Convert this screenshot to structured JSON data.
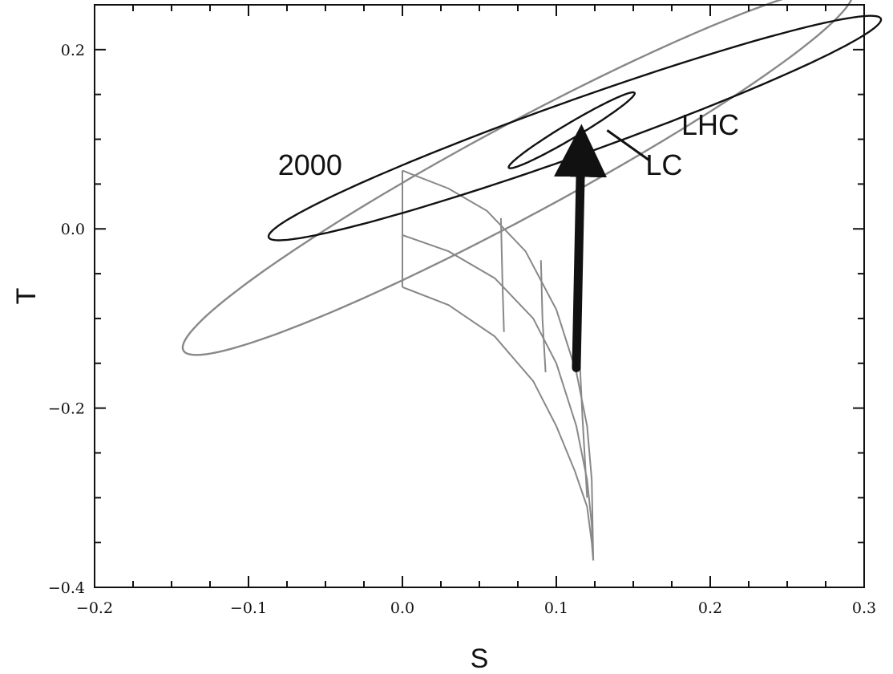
{
  "chart_data": {
    "type": "scatter",
    "xlabel": "S",
    "ylabel": "T",
    "xlim": [
      -0.2,
      0.3
    ],
    "ylim": [
      -0.4,
      0.25
    ],
    "x_ticks": [
      "-0.2",
      "-0.1",
      "0.0",
      "0.1",
      "0.2",
      "0.3"
    ],
    "y_ticks": [
      "-0.4",
      "-0.2",
      "0.0",
      "0.2"
    ],
    "grid": false,
    "annotations": [
      {
        "text": "2000",
        "x": -0.06,
        "y": 0.06
      },
      {
        "text": "LHC",
        "x": 0.2,
        "y": 0.105
      },
      {
        "text": "LC",
        "x": 0.17,
        "y": 0.06
      }
    ],
    "ellipses": [
      {
        "label": "2000",
        "color": "#888888",
        "cx": 0.075,
        "cy": 0.065,
        "semi_major": 0.2965,
        "semi_minor": 0.0425,
        "angle_deg": 43.3
      },
      {
        "label": "LHC",
        "color": "#111111",
        "cx": 0.112,
        "cy": 0.1125,
        "semi_major": 0.2335,
        "semi_minor": 0.0275,
        "angle_deg": 31.8
      },
      {
        "label": "LC",
        "color": "#111111",
        "cx": 0.11,
        "cy": 0.11,
        "semi_major": 0.0585,
        "semi_minor": 0.0068,
        "angle_deg": 46.0
      }
    ],
    "grid_mesh": {
      "color": "#888888",
      "curves": [
        [
          [
            0.0,
            0.065
          ],
          [
            0.03,
            0.045
          ],
          [
            0.055,
            0.02
          ],
          [
            0.08,
            -0.025
          ],
          [
            0.1,
            -0.09
          ],
          [
            0.113,
            -0.16
          ],
          [
            0.12,
            -0.22
          ],
          [
            0.123,
            -0.28
          ],
          [
            0.124,
            -0.37
          ]
        ],
        [
          [
            0.0,
            -0.007
          ],
          [
            0.03,
            -0.025
          ],
          [
            0.06,
            -0.055
          ],
          [
            0.085,
            -0.1
          ],
          [
            0.1,
            -0.15
          ],
          [
            0.113,
            -0.22
          ],
          [
            0.12,
            -0.28
          ],
          [
            0.123,
            -0.33
          ],
          [
            0.124,
            -0.37
          ]
        ],
        [
          [
            0.0,
            -0.065
          ],
          [
            0.03,
            -0.085
          ],
          [
            0.06,
            -0.12
          ],
          [
            0.085,
            -0.17
          ],
          [
            0.1,
            -0.22
          ],
          [
            0.112,
            -0.27
          ],
          [
            0.12,
            -0.31
          ],
          [
            0.123,
            -0.35
          ],
          [
            0.124,
            -0.37
          ]
        ]
      ],
      "rungs": [
        [
          [
            0.0,
            0.065
          ],
          [
            0.0,
            -0.007
          ],
          [
            0.0,
            -0.065
          ]
        ],
        [
          [
            0.064,
            0.012
          ],
          [
            0.065,
            -0.06
          ],
          [
            0.066,
            -0.115
          ]
        ],
        [
          [
            0.09,
            -0.035
          ],
          [
            0.091,
            -0.1
          ],
          [
            0.093,
            -0.16
          ]
        ],
        [
          [
            0.115,
            -0.14
          ],
          [
            0.117,
            -0.21
          ],
          [
            0.12,
            -0.3
          ]
        ]
      ]
    },
    "arrow": {
      "from": [
        0.113,
        -0.155
      ],
      "to": [
        0.116,
        0.1
      ],
      "color": "#111111"
    }
  }
}
